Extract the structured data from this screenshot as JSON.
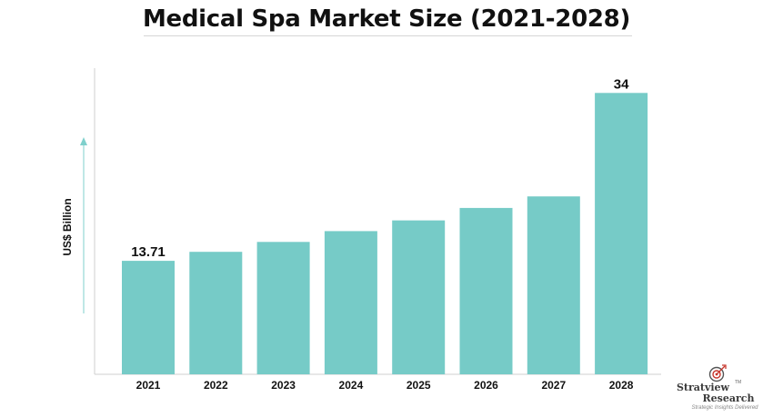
{
  "chart_data": {
    "type": "bar",
    "title": "Medical Spa Market Size (2021-2028)",
    "ylabel": "US$ Billion",
    "xlabel": "",
    "categories": [
      "2021",
      "2022",
      "2023",
      "2024",
      "2025",
      "2026",
      "2027",
      "2028"
    ],
    "values": [
      13.71,
      14.8,
      16.0,
      17.3,
      18.6,
      20.1,
      21.5,
      34
    ],
    "data_labels": [
      "13.71",
      "",
      "",
      "",
      "",
      "",
      "",
      "34"
    ],
    "ylim": [
      0,
      37
    ],
    "grid": false,
    "bar_color": "#76cbc7"
  },
  "logo": {
    "brand": "Stratview",
    "tm": "TM",
    "sub": "Research",
    "tagline": "Strategic Insights Delivered"
  }
}
